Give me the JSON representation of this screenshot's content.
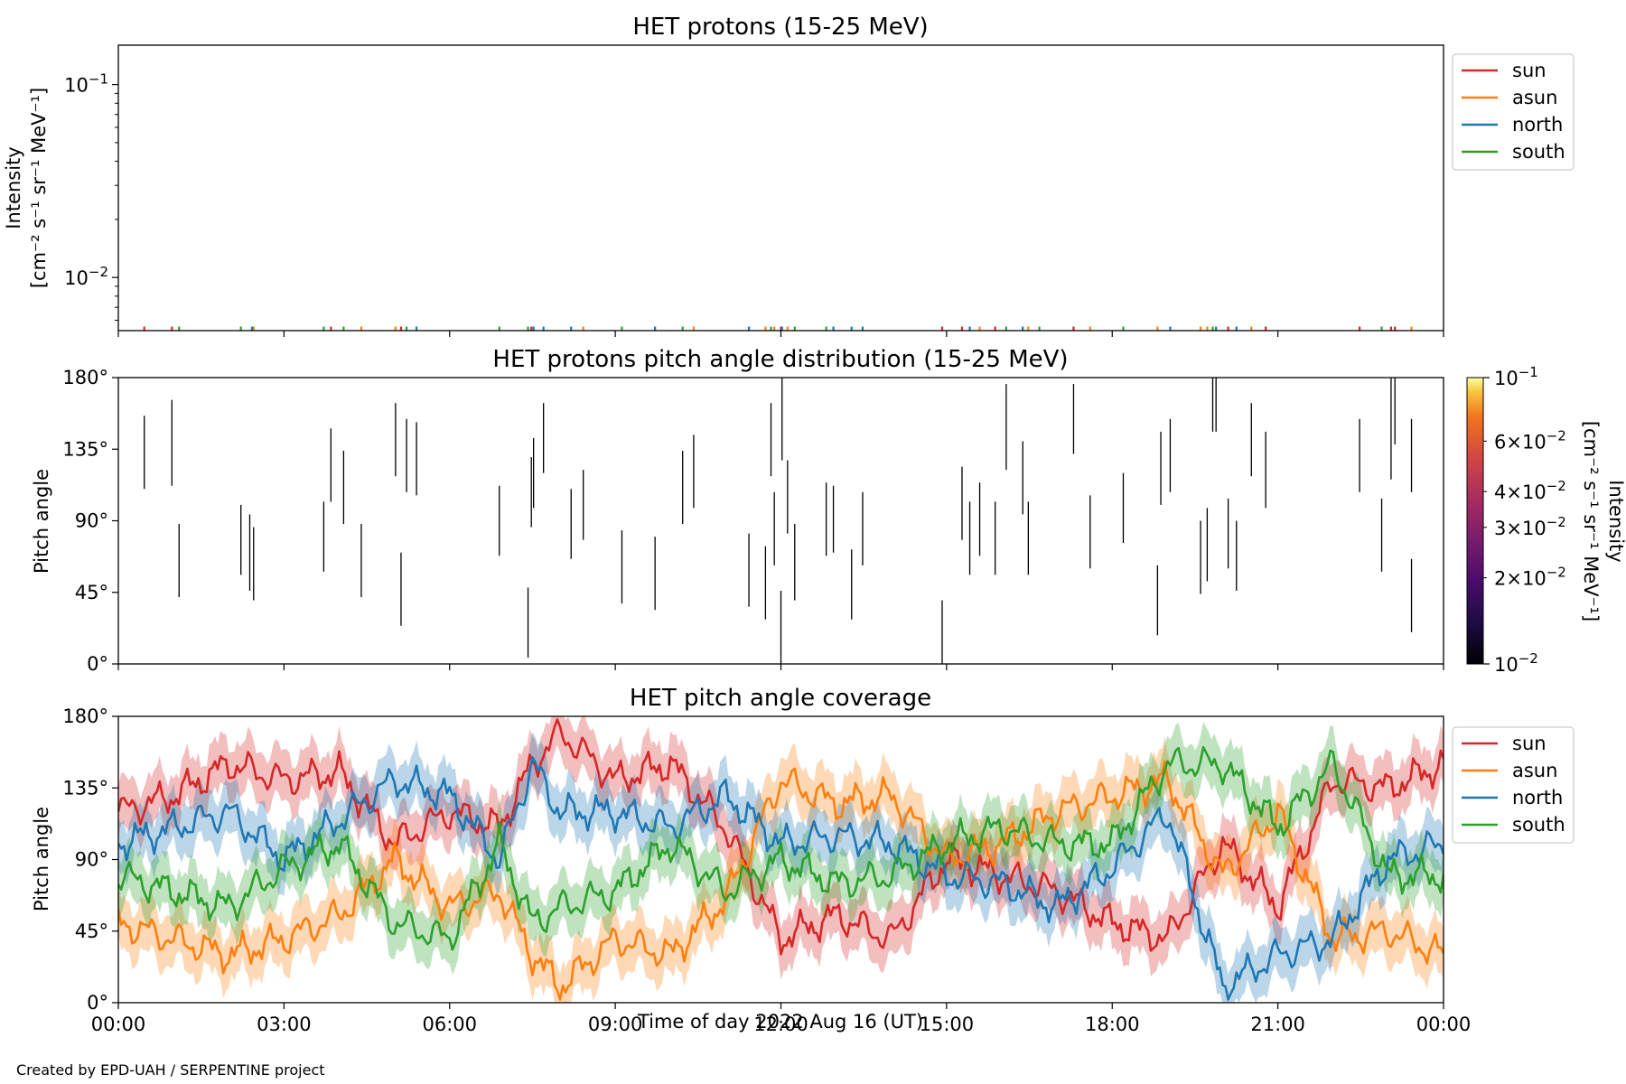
{
  "footer": {
    "credit": "Created by EPD-UAH / SERPENTINE project"
  },
  "colors": {
    "sun": "#d62728",
    "asun": "#ff7f0e",
    "north": "#1f77b4",
    "south": "#2ca02c"
  },
  "x_axis": {
    "label": "Time of day 2022 Aug 16 (UT)",
    "range_hours": [
      0,
      24
    ],
    "tick_hours": [
      0,
      3,
      6,
      9,
      12,
      15,
      18,
      21,
      24
    ],
    "tick_labels": [
      "00:00",
      "03:00",
      "06:00",
      "09:00",
      "12:00",
      "15:00",
      "18:00",
      "21:00",
      "00:00"
    ]
  },
  "chart_data": [
    {
      "type": "line",
      "title": "HET protons (15-25 MeV)",
      "ylabel_line1": "Intensity",
      "ylabel_line2": "[cm⁻² s⁻¹ sr⁻¹ MeV⁻¹]",
      "yscale": "log",
      "ylim": [
        0.0053,
        0.16
      ],
      "ytick_labels": [
        {
          "value": 0.01,
          "base": "10",
          "exp": "−2"
        },
        {
          "value": 0.1,
          "base": "10",
          "exp": "−1"
        }
      ],
      "legend": {
        "position": "top-right",
        "entries": [
          "sun",
          "asun",
          "north",
          "south"
        ]
      },
      "series": [
        {
          "name": "sun",
          "value": 0.0055,
          "x": [
            0.47,
            0.97,
            3.85,
            5.12,
            7.48,
            12.0,
            14.92,
            15.28,
            15.88,
            17.3,
            20.1,
            20.78,
            22.48,
            23.05,
            23.12
          ]
        },
        {
          "name": "asun",
          "value": 0.0055,
          "x": [
            2.45,
            4.4,
            5.02,
            8.42,
            10.42,
            11.72,
            11.88,
            12.12,
            15.6,
            16.48,
            17.6,
            18.82,
            19.6,
            19.72,
            20.52,
            23.42
          ]
        },
        {
          "name": "north",
          "value": 0.0055,
          "x": [
            2.42,
            5.4,
            7.52,
            7.7,
            8.2,
            9.72,
            11.42,
            12.02,
            12.95,
            13.28,
            13.48,
            15.42,
            16.38,
            19.05,
            19.88,
            20.25
          ]
        },
        {
          "name": "south",
          "value": 0.0055,
          "x": [
            1.1,
            2.22,
            3.72,
            4.08,
            5.22,
            6.9,
            7.42,
            9.12,
            10.22,
            11.82,
            12.25,
            12.82,
            16.08,
            16.68,
            18.2,
            19.82,
            22.88
          ]
        }
      ]
    },
    {
      "type": "heatmap",
      "title": "HET protons pitch angle distribution (15-25 MeV)",
      "ylabel": "Pitch angle",
      "ylim": [
        0,
        180
      ],
      "ytick_values": [
        0,
        45,
        90,
        135,
        180
      ],
      "ytick_labels": [
        "0°",
        "45°",
        "90°",
        "135°",
        "180°"
      ],
      "colorbar": {
        "label_line1": "Intensity",
        "label_line2": "[cm⁻² s⁻¹ sr⁻¹ MeV⁻¹]",
        "scale": "log",
        "range": [
          0.01,
          0.1
        ],
        "major_labels": [
          {
            "value": 0.01,
            "base": "10",
            "exp": "−2"
          },
          {
            "value": 0.1,
            "base": "10",
            "exp": "−1"
          }
        ],
        "minor_labels": [
          {
            "value": 0.02,
            "mant": "2",
            "base": "10",
            "exp": "−2"
          },
          {
            "value": 0.03,
            "mant": "3",
            "base": "10",
            "exp": "−2"
          },
          {
            "value": 0.04,
            "mant": "4",
            "base": "10",
            "exp": "−2"
          },
          {
            "value": 0.06,
            "mant": "6",
            "base": "10",
            "exp": "−2"
          }
        ]
      },
      "segments": [
        [
          0.47,
          110,
          156
        ],
        [
          0.97,
          112,
          166
        ],
        [
          1.1,
          42,
          88
        ],
        [
          2.22,
          56,
          100
        ],
        [
          2.38,
          46,
          94
        ],
        [
          2.45,
          40,
          86
        ],
        [
          3.72,
          58,
          102
        ],
        [
          3.85,
          102,
          148
        ],
        [
          4.08,
          88,
          134
        ],
        [
          4.4,
          42,
          88
        ],
        [
          5.02,
          118,
          164
        ],
        [
          5.12,
          24,
          70
        ],
        [
          5.22,
          108,
          154
        ],
        [
          5.4,
          106,
          152
        ],
        [
          6.9,
          68,
          112
        ],
        [
          7.42,
          4,
          48
        ],
        [
          7.48,
          86,
          130
        ],
        [
          7.52,
          98,
          142
        ],
        [
          7.7,
          120,
          164
        ],
        [
          8.2,
          66,
          110
        ],
        [
          8.42,
          78,
          122
        ],
        [
          9.12,
          38,
          84
        ],
        [
          9.72,
          34,
          80
        ],
        [
          10.22,
          88,
          134
        ],
        [
          10.42,
          98,
          144
        ],
        [
          11.42,
          36,
          82
        ],
        [
          11.72,
          28,
          74
        ],
        [
          11.82,
          118,
          164
        ],
        [
          11.88,
          62,
          108
        ],
        [
          12.0,
          0,
          46
        ],
        [
          12.02,
          128,
          180
        ],
        [
          12.12,
          82,
          128
        ],
        [
          12.25,
          40,
          88
        ],
        [
          12.82,
          68,
          114
        ],
        [
          12.95,
          70,
          112
        ],
        [
          13.28,
          28,
          72
        ],
        [
          13.48,
          62,
          108
        ],
        [
          14.92,
          0,
          40
        ],
        [
          15.28,
          78,
          124
        ],
        [
          15.42,
          56,
          102
        ],
        [
          15.6,
          68,
          114
        ],
        [
          15.88,
          56,
          102
        ],
        [
          16.08,
          122,
          176
        ],
        [
          16.38,
          94,
          140
        ],
        [
          16.48,
          56,
          102
        ],
        [
          17.3,
          132,
          176
        ],
        [
          17.6,
          60,
          106
        ],
        [
          18.2,
          76,
          120
        ],
        [
          18.82,
          18,
          62
        ],
        [
          18.88,
          100,
          146
        ],
        [
          19.05,
          108,
          154
        ],
        [
          19.6,
          44,
          90
        ],
        [
          19.72,
          52,
          98
        ],
        [
          19.82,
          146,
          180
        ],
        [
          19.88,
          146,
          180
        ],
        [
          20.1,
          60,
          104
        ],
        [
          20.25,
          46,
          90
        ],
        [
          20.52,
          118,
          164
        ],
        [
          20.78,
          98,
          146
        ],
        [
          22.48,
          108,
          154
        ],
        [
          22.88,
          58,
          104
        ],
        [
          23.05,
          116,
          180
        ],
        [
          23.12,
          138,
          180
        ],
        [
          23.42,
          20,
          66
        ],
        [
          23.42,
          108,
          154
        ]
      ]
    },
    {
      "type": "area",
      "title": "HET pitch angle coverage",
      "ylabel": "Pitch angle",
      "ylim": [
        0,
        180
      ],
      "ytick_values": [
        0,
        45,
        90,
        135,
        180
      ],
      "ytick_labels": [
        "0°",
        "45°",
        "90°",
        "135°",
        "180°"
      ],
      "band_halfwidth_deg": 16,
      "legend": {
        "position": "top-right",
        "entries": [
          "sun",
          "asun",
          "north",
          "south"
        ]
      },
      "x": [
        0,
        1,
        2,
        3,
        4,
        5,
        6,
        6.9,
        7.5,
        8,
        9,
        10,
        11,
        12,
        13,
        14,
        15,
        16,
        17,
        18,
        19,
        20,
        21,
        22,
        23,
        24
      ],
      "series": [
        {
          "name": "sun",
          "values": [
            120,
            130,
            150,
            140,
            145,
            100,
            120,
            110,
            150,
            170,
            140,
            150,
            110,
            40,
            55,
            40,
            90,
            80,
            70,
            50,
            40,
            100,
            60,
            140,
            135,
            150
          ]
        },
        {
          "name": "asun",
          "values": [
            50,
            40,
            30,
            40,
            55,
            90,
            60,
            70,
            30,
            10,
            40,
            30,
            65,
            140,
            125,
            130,
            90,
            100,
            120,
            130,
            140,
            80,
            120,
            40,
            45,
            30
          ]
        },
        {
          "name": "north",
          "values": [
            100,
            110,
            120,
            90,
            115,
            140,
            130,
            90,
            150,
            120,
            120,
            110,
            130,
            100,
            105,
            100,
            80,
            75,
            60,
            85,
            120,
            10,
            30,
            40,
            90,
            100
          ]
        },
        {
          "name": "south",
          "values": [
            80,
            70,
            60,
            85,
            100,
            50,
            40,
            100,
            50,
            60,
            70,
            100,
            70,
            90,
            75,
            80,
            100,
            110,
            100,
            100,
            150,
            150,
            110,
            150,
            80,
            80
          ]
        }
      ]
    }
  ]
}
